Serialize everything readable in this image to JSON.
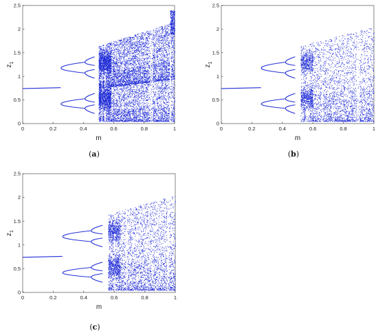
{
  "figure": {
    "captions": [
      "(a)",
      "(b)",
      "(c)"
    ],
    "caption_letters": [
      "a",
      "b",
      "c"
    ]
  },
  "colors": {
    "data": "#1f2bd6",
    "axis": "#333333",
    "text": "#222222"
  },
  "chart_data": [
    {
      "type": "scatter",
      "panel": "a",
      "xlabel": "m",
      "ylabel_base": "z",
      "ylabel_sub": "1",
      "xlim": [
        0,
        1
      ],
      "ylim": [
        0,
        2.5
      ],
      "xticks": [
        "0",
        "0.2",
        "0.4",
        "0.6",
        "0.8",
        "1"
      ],
      "xtick_values": [
        0,
        0.2,
        0.4,
        0.6,
        0.8,
        1
      ],
      "yticks": [
        "0",
        "0.5",
        "1",
        "1.5",
        "2",
        "2.5"
      ],
      "ytick_values": [
        0,
        0.5,
        1,
        1.5,
        2,
        2.5
      ],
      "grid": false,
      "series": [
        {
          "segment": "fixed-point",
          "m": [
            0,
            0.25
          ],
          "z1": [
            0.74,
            0.76
          ]
        },
        {
          "segment": "period-2-upper",
          "m": [
            0.25,
            0.47
          ],
          "z1": [
            1.18,
            1.45
          ]
        },
        {
          "segment": "period-2-lower",
          "m": [
            0.25,
            0.47
          ],
          "z1": [
            0.42,
            0.3
          ]
        },
        {
          "segment": "chaos-band-upper",
          "m": [
            0.5,
            1.0
          ],
          "z1_min": [
            0.75,
            0.95
          ],
          "z1_max": [
            1.65,
            2.15
          ]
        },
        {
          "segment": "chaos-band-lower",
          "m": [
            0.5,
            1.0
          ],
          "z1_min": [
            0.05,
            0.05
          ],
          "z1_max": [
            0.75,
            0.95
          ]
        }
      ],
      "windows": [
        0.52,
        0.54,
        0.84,
        0.85,
        0.97
      ]
    },
    {
      "type": "scatter",
      "panel": "b",
      "xlabel": "m",
      "ylabel_base": "z",
      "ylabel_sub": "1",
      "xlim": [
        0,
        1
      ],
      "ylim": [
        0,
        2.5
      ],
      "xticks": [
        "0",
        "0.2",
        "0.4",
        "0.6",
        "0.8",
        "1"
      ],
      "xtick_values": [
        0,
        0.2,
        0.4,
        0.6,
        0.8,
        1
      ],
      "yticks": [
        "0",
        "0.5",
        "1",
        "1.5",
        "2",
        "2.5"
      ],
      "ytick_values": [
        0,
        0.5,
        1,
        1.5,
        2,
        2.5
      ],
      "grid": false,
      "series": [
        {
          "segment": "fixed-point",
          "m": [
            0,
            0.26
          ],
          "z1": [
            0.74,
            0.76
          ]
        },
        {
          "segment": "period-2-upper",
          "m": [
            0.26,
            0.48
          ],
          "z1": [
            1.18,
            1.45
          ]
        },
        {
          "segment": "period-2-lower",
          "m": [
            0.26,
            0.48
          ],
          "z1": [
            0.42,
            0.3
          ]
        },
        {
          "segment": "chaos-band",
          "m": [
            0.52,
            1.0
          ],
          "z1_min": [
            0.05,
            0.05
          ],
          "z1_max": [
            1.65,
            2.05
          ]
        }
      ],
      "windows": [
        0.53,
        0.56,
        0.57,
        0.66,
        0.89,
        0.9
      ]
    },
    {
      "type": "scatter",
      "panel": "c",
      "xlabel": "m",
      "ylabel_base": "z",
      "ylabel_sub": "1",
      "xlim": [
        0,
        1
      ],
      "ylim": [
        0,
        2.5
      ],
      "xticks": [
        "0",
        "0.2",
        "0.4",
        "0.6",
        "0.8",
        "1"
      ],
      "xtick_values": [
        0,
        0.2,
        0.4,
        0.6,
        0.8,
        1
      ],
      "yticks": [
        "0",
        "0.5",
        "1",
        "1.5",
        "2",
        "2.5"
      ],
      "ytick_values": [
        0,
        0.5,
        1,
        1.5,
        2,
        2.5
      ],
      "grid": false,
      "series": [
        {
          "segment": "fixed-point",
          "m": [
            0,
            0.26
          ],
          "z1": [
            0.74,
            0.76
          ]
        },
        {
          "segment": "period-2-upper",
          "m": [
            0.26,
            0.52
          ],
          "z1": [
            1.18,
            1.48
          ]
        },
        {
          "segment": "period-2-lower",
          "m": [
            0.26,
            0.52
          ],
          "z1": [
            0.42,
            0.28
          ]
        },
        {
          "segment": "chaos-band",
          "m": [
            0.56,
            1.0
          ],
          "z1_min": [
            0.05,
            0.05
          ],
          "z1_max": [
            1.65,
            2.05
          ]
        }
      ],
      "windows": [
        0.6,
        0.68,
        0.95
      ]
    }
  ]
}
